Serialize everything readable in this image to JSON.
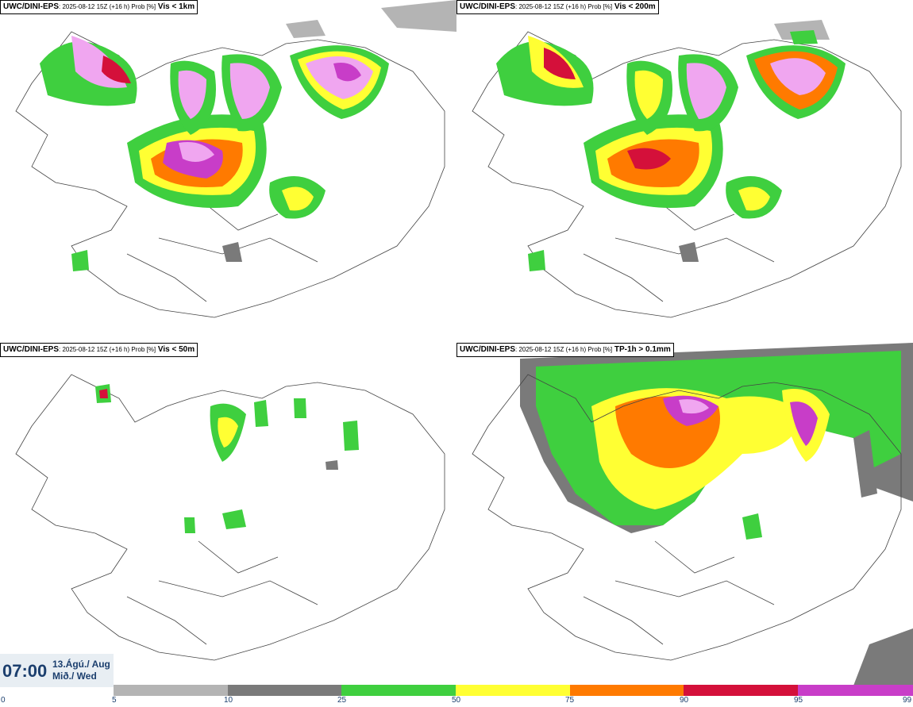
{
  "panels": [
    {
      "model": "UWC/DINI-EPS",
      "meta": ": 2025-08-12 15Z (+16 h) Prob [%]",
      "variable": "Vis < 1km"
    },
    {
      "model": "UWC/DINI-EPS",
      "meta": ": 2025-08-12 15Z (+16 h) Prob [%]",
      "variable": "Vis < 200m"
    },
    {
      "model": "UWC/DINI-EPS",
      "meta": ": 2025-08-12 15Z (+16 h) Prob [%]",
      "variable": "Vis < 50m"
    },
    {
      "model": "UWC/DINI-EPS",
      "meta": ": 2025-08-12 15Z (+16 h) Prob [%]",
      "variable": "TP-1h > 0.1mm"
    }
  ],
  "valid_time": {
    "time": "07:00",
    "date_line1": "13.Ágú./ Aug",
    "date_line2": "Mið./ Wed"
  },
  "legend": {
    "ticks": [
      "0",
      "5",
      "10",
      "25",
      "50",
      "75",
      "90",
      "95",
      "99"
    ],
    "colors": [
      "#ffffff",
      "#b4b4b4",
      "#7a7a7a",
      "#3fcf3f",
      "#ffff33",
      "#ff7a00",
      "#d4103a",
      "#c83dc8",
      "#f0a6f0"
    ]
  }
}
